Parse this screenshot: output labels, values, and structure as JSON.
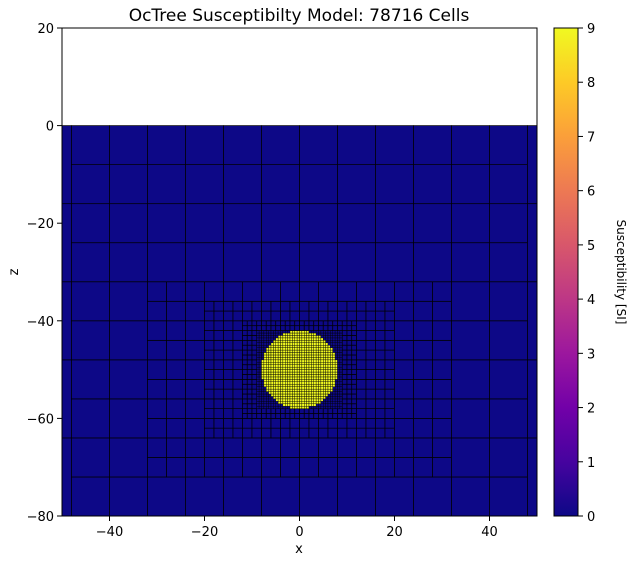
{
  "chart_data": {
    "type": "heatmap",
    "title": "OcTree Susceptibilty Model: 78716 Cells",
    "xlabel": "x",
    "ylabel": "z",
    "xlim": [
      -50,
      50
    ],
    "ylim": [
      -80,
      20
    ],
    "x_ticks": [
      -40,
      -20,
      0,
      20,
      40
    ],
    "y_ticks": [
      -80,
      -60,
      -40,
      -20,
      0,
      20
    ],
    "model_top": 0,
    "background_value": 0,
    "anomaly": {
      "shape": "sphere",
      "center_x": 0,
      "center_z": -50,
      "radius": 8,
      "value": 9
    },
    "mesh_refinement": [
      {
        "cell_size": 8,
        "x_range": [
          -48,
          48
        ],
        "z_range": [
          -80,
          0
        ]
      },
      {
        "cell_size": 4,
        "x_range": [
          -32,
          32
        ],
        "z_range": [
          -72,
          -28
        ]
      },
      {
        "cell_size": 4,
        "x_range": [
          -16,
          16
        ],
        "z_range": [
          -4,
          0
        ]
      },
      {
        "cell_size": 2,
        "x_range": [
          -20,
          20
        ],
        "z_range": [
          -64,
          -36
        ]
      },
      {
        "cell_size": 1,
        "x_range": [
          -12,
          12
        ],
        "z_range": [
          -60,
          -40
        ]
      },
      {
        "cell_size": 0.5,
        "x_range": [
          -9,
          9
        ],
        "z_range": [
          -58,
          -42
        ]
      }
    ],
    "colorbar": {
      "label": "Susceptibility [SI]",
      "colormap": "plasma",
      "range": [
        0,
        9
      ],
      "ticks": [
        0,
        1,
        2,
        3,
        4,
        5,
        6,
        7,
        8,
        9
      ]
    },
    "colors": {
      "background_cell": "#0d0887",
      "anomaly_cell": "#f0f921",
      "cell_edge": "#000000"
    }
  }
}
